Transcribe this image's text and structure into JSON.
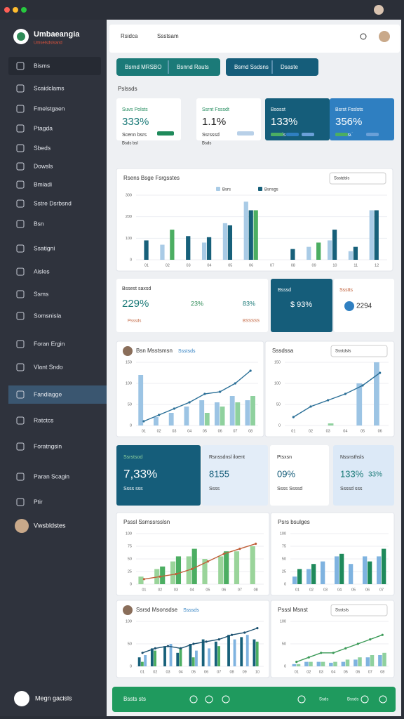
{
  "sidebar": {
    "brand": "Umbaeangia",
    "brand_sub": "Umselsdslsand",
    "items": [
      "Bisms",
      "Scaidclams",
      "Fmelstgaen",
      "Ptagda",
      "Sbeds",
      "Dowsls",
      "Bmiadi",
      "Sstre Dsrbsnd",
      "Bsn",
      "Ssatigni",
      "Aisles",
      "Ssms",
      "Somsnisla",
      "Foran Ergin",
      "Vlant Sndo",
      "Fandiagge",
      "Ratctcs",
      "Foratngsin",
      "Paran Scagin",
      "Ptir"
    ],
    "user": "Vwsbldstes",
    "footer": "Megn gacisls"
  },
  "header": {
    "search": "Rsidca",
    "query": "Ssstsam"
  },
  "tabs": [
    "Bsrnd MRSBO",
    "Bsnnd Rauts",
    "Bsmd Ssdsns",
    "Dsaste"
  ],
  "section_label": "Pslssds",
  "kpis": [
    {
      "label": "Suvs Polsts",
      "value": "333%",
      "sub": "Scenn bsrs",
      "foot": "Bsds bsl"
    },
    {
      "label": "Ssrnt Fsssdt",
      "value": "1.1%",
      "sub": "Ssrsssd",
      "foot": "Bsds"
    },
    {
      "label": "Bsosst",
      "value": "133%",
      "sub": "Ssrsds"
    },
    {
      "label": "Bsrst Fsslsts",
      "value": "356%",
      "sub": "Ssrsssds"
    }
  ],
  "stat_cards": [
    {
      "label": "Bssest saxsd",
      "value": "229%",
      "stats": [
        "23%",
        "83%"
      ],
      "notes": [
        "Psssds",
        "BSSSSS"
      ]
    },
    {
      "label": "Bsssd",
      "value": "$ 93%"
    },
    {
      "label": "Ssstts",
      "value": "2294"
    }
  ],
  "mid_cards": [
    {
      "label": "Ssrstsod",
      "value": "7,33%",
      "sub": "Ssss sss"
    },
    {
      "label": "Rsnssdnsl iloent",
      "value": "8155",
      "sub": "Ssss"
    },
    {
      "label": "Ptsxsn",
      "value": "09%",
      "sub": "Ssss Ssssd"
    },
    {
      "label": "Nssnsthsls",
      "value": "133%",
      "value2": "33%",
      "sub": "Ssssd sss"
    }
  ],
  "chart_data": [
    {
      "type": "bar",
      "title": "Rsens Bsge Fsrgsstes",
      "legend": [
        "Bsrs",
        "Bsnsgs"
      ],
      "control": "Ssstdsls",
      "categories": [
        "01",
        "02",
        "03",
        "04",
        "05",
        "06",
        "07",
        "08",
        "09",
        "10",
        "11",
        "12"
      ],
      "ylim": [
        0,
        300
      ],
      "yticks": [
        0,
        100,
        200,
        300
      ],
      "series": [
        {
          "color": "#a9cbe6",
          "values": [
            0,
            70,
            0,
            80,
            170,
            270,
            0,
            0,
            60,
            90,
            40,
            230
          ]
        },
        {
          "color": "#17607a",
          "values": [
            90,
            0,
            110,
            105,
            160,
            230,
            0,
            50,
            0,
            140,
            60,
            230
          ]
        },
        {
          "color": "#4cae62",
          "values": [
            0,
            140,
            0,
            0,
            0,
            230,
            0,
            0,
            80,
            0,
            0,
            0
          ]
        }
      ]
    },
    {
      "type": "bar",
      "title": "Bsn Msstsmsn",
      "subtitle": "Ssstsds",
      "categories": [
        "01",
        "02",
        "03",
        "04",
        "05",
        "06",
        "07",
        "08"
      ],
      "ylim": [
        0,
        150
      ],
      "yticks": [
        0,
        50,
        100,
        150
      ],
      "series": [
        {
          "color": "#9cc4e4",
          "values": [
            120,
            20,
            30,
            45,
            60,
            55,
            70,
            60
          ]
        },
        {
          "color": "#8fd19e",
          "values": [
            0,
            0,
            0,
            0,
            30,
            45,
            55,
            70
          ]
        }
      ],
      "line": {
        "color": "#2a6f97",
        "values": [
          10,
          25,
          40,
          55,
          75,
          80,
          100,
          130
        ]
      }
    },
    {
      "type": "bar",
      "title": "Sssdssa",
      "control": "Ssstdsls",
      "categories": [
        "01",
        "02",
        "03",
        "04",
        "05",
        "06"
      ],
      "ylim": [
        0,
        150
      ],
      "yticks": [
        0,
        50,
        100,
        150
      ],
      "series": [
        {
          "color": "#9cc4e4",
          "values": [
            0,
            0,
            0,
            0,
            100,
            150
          ]
        },
        {
          "color": "#8fd19e",
          "values": [
            0,
            0,
            5,
            0,
            0,
            0
          ]
        }
      ],
      "line": {
        "color": "#2a6f97",
        "values": [
          20,
          45,
          60,
          75,
          95,
          125
        ]
      }
    },
    {
      "type": "bar",
      "title": "Psssl Ssmssrsslsn",
      "categories": [
        "01",
        "02",
        "03",
        "04",
        "05",
        "06",
        "07",
        "08"
      ],
      "ylim": [
        0,
        100
      ],
      "yticks": [
        0,
        25,
        50,
        75,
        100
      ],
      "series": [
        {
          "color": "#9ad49a",
          "values": [
            15,
            30,
            45,
            55,
            50,
            55,
            65,
            75
          ]
        },
        {
          "color": "#4cae62",
          "values": [
            0,
            35,
            55,
            70,
            0,
            65,
            0,
            0
          ]
        }
      ],
      "line": {
        "color": "#c0603a",
        "values": [
          10,
          15,
          20,
          30,
          45,
          60,
          70,
          80
        ]
      }
    },
    {
      "type": "bar",
      "title": "Psrs bsulges",
      "categories": [
        "01",
        "02",
        "03",
        "04",
        "05",
        "06",
        "07"
      ],
      "ylim": [
        0,
        100
      ],
      "yticks": [
        0,
        25,
        50,
        75,
        100
      ],
      "series": [
        {
          "color": "#7fb3e0",
          "values": [
            15,
            30,
            45,
            55,
            40,
            55,
            55
          ]
        },
        {
          "color": "#1f8a5b",
          "values": [
            30,
            40,
            0,
            60,
            0,
            45,
            70
          ]
        }
      ]
    },
    {
      "type": "bar",
      "title": "Ssrsd Msonsdse",
      "subtitle": "Ssssds",
      "categories": [
        "01",
        "02",
        "03",
        "04",
        "05",
        "06",
        "07",
        "08",
        "09",
        "10"
      ],
      "ylim": [
        0,
        100
      ],
      "yticks": [
        0,
        50,
        100
      ],
      "series": [
        {
          "color": "#17607a",
          "values": [
            20,
            40,
            45,
            30,
            50,
            60,
            55,
            70,
            65,
            60
          ]
        },
        {
          "color": "#4cae62",
          "values": [
            10,
            35,
            0,
            40,
            20,
            0,
            45,
            0,
            0,
            55
          ]
        },
        {
          "color": "#7fb3e0",
          "values": [
            25,
            0,
            50,
            0,
            35,
            40,
            0,
            60,
            70,
            0
          ]
        }
      ],
      "line": {
        "color": "#1a4f6e",
        "values": [
          30,
          40,
          45,
          40,
          50,
          55,
          60,
          70,
          75,
          85
        ]
      }
    },
    {
      "type": "bar",
      "title": "Psssl Msnst",
      "control": "Ssstsls",
      "categories": [
        "01",
        "02",
        "03",
        "04",
        "05",
        "06",
        "07",
        "08"
      ],
      "ylim": [
        0,
        100
      ],
      "yticks": [
        0,
        50,
        100
      ],
      "series": [
        {
          "color": "#7fb3e0",
          "values": [
            5,
            10,
            10,
            8,
            10,
            15,
            20,
            25
          ]
        },
        {
          "color": "#8fd19e",
          "values": [
            5,
            10,
            10,
            10,
            15,
            20,
            25,
            30
          ]
        }
      ],
      "line": {
        "color": "#3b9a57",
        "values": [
          10,
          20,
          30,
          30,
          40,
          50,
          60,
          70
        ]
      }
    }
  ],
  "footer_bar": {
    "label": "Bssts sts",
    "items": [
      "Ssds",
      "Bssds"
    ]
  }
}
